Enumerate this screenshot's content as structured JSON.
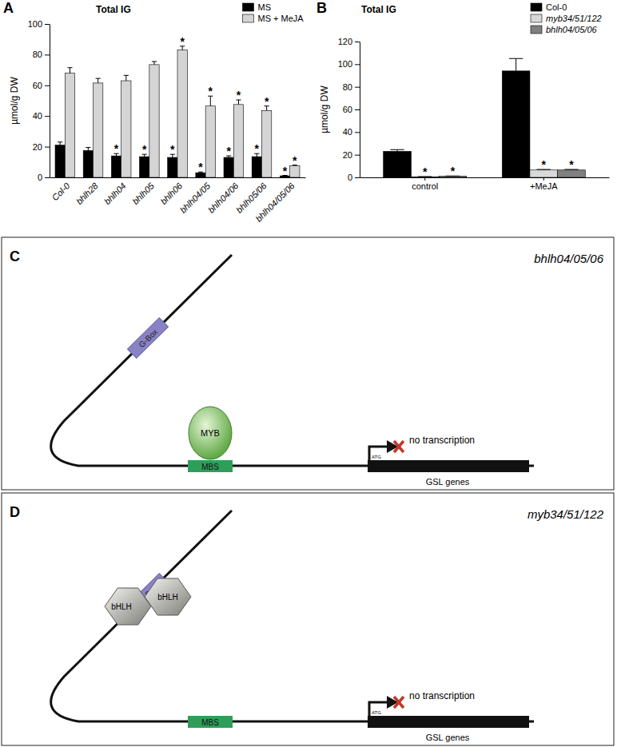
{
  "chart_data": [
    {
      "type": "bar",
      "panel": "A",
      "title": "Total IG",
      "ylabel": "µmol/g DW",
      "categories": [
        "Col-0",
        "bhlh28",
        "bhlh04",
        "bhlh05",
        "bhlh06",
        "bhlh04/05",
        "bhlh04/06",
        "bhlh05/06",
        "bhlh04/05/06"
      ],
      "series": [
        {
          "name": "MS",
          "color": "#000000",
          "values": [
            21,
            17.5,
            14,
            13.5,
            13,
            3,
            13,
            13.5,
            1
          ],
          "errors": [
            2,
            2,
            1.5,
            1.5,
            2,
            0.5,
            1,
            2,
            0.3
          ],
          "annotations": [
            null,
            null,
            "*",
            "*",
            "*",
            "*",
            "*",
            "*",
            "*"
          ]
        },
        {
          "name": "MS + MeJA",
          "color": "#d4d4d4",
          "values": [
            68,
            61.5,
            63,
            73.5,
            83,
            46.5,
            47.5,
            43.5,
            7.5
          ],
          "errors": [
            3.5,
            3,
            3.5,
            2,
            2.5,
            6.5,
            3,
            3,
            0.5
          ],
          "annotations": [
            null,
            null,
            null,
            null,
            "*",
            "*",
            "*",
            "*",
            "*"
          ]
        }
      ],
      "ylim": [
        0,
        100
      ],
      "yticks": [
        0,
        20,
        40,
        60,
        80,
        100
      ],
      "legend": "upper right"
    },
    {
      "type": "bar",
      "panel": "B",
      "title": "Total IG",
      "ylabel": "µmol/g DW",
      "categories": [
        "control",
        "+MeJA"
      ],
      "series": [
        {
          "name": "Col-0",
          "color": "#000000",
          "values": [
            23,
            94
          ],
          "errors": [
            1.5,
            11
          ],
          "annotations": [
            null,
            null
          ]
        },
        {
          "name": "myb34/51/122",
          "color": "#d9d9d9",
          "values": [
            0.5,
            6.5
          ],
          "errors": [
            0.2,
            0.5
          ],
          "annotations": [
            "*",
            "*"
          ]
        },
        {
          "name": "bhlh04/05/06",
          "color": "#808080",
          "values": [
            1,
            6.5
          ],
          "errors": [
            0.2,
            0.5
          ],
          "annotations": [
            "*",
            "*"
          ]
        }
      ],
      "ylim": [
        0,
        120
      ],
      "yticks": [
        0,
        20,
        40,
        60,
        80,
        100,
        120
      ],
      "legend": "upper right"
    }
  ],
  "diagrams": [
    {
      "panel": "C",
      "title": "bhlh04/05/06",
      "g_box": "G-Box",
      "mbs": "MBS",
      "factors": [
        "MYB"
      ],
      "start": "ATG",
      "status": "no transcription",
      "gene": "GSL genes"
    },
    {
      "panel": "D",
      "title": "myb34/51/122",
      "g_box": "G-Box",
      "mbs": "MBS",
      "factors": [
        "bHLH",
        "bHLH"
      ],
      "start": "ATG",
      "status": "no transcription",
      "gene": "GSL genes"
    }
  ]
}
